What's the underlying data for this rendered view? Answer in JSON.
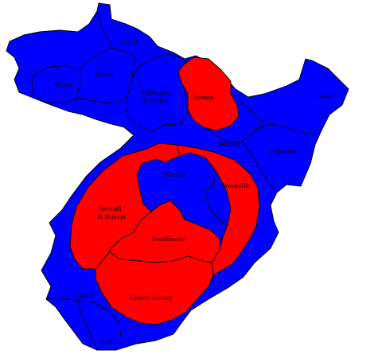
{
  "colors": {
    "conservative": "#0000ff",
    "labour": "#ff0000",
    "border": "#000000",
    "background": "#ffffff"
  },
  "wards": [
    {
      "id": "etwall",
      "party": "conservative",
      "labels": [
        "Etwall"
      ]
    },
    {
      "id": "hatton",
      "party": "conservative",
      "labels": [
        "Hatton"
      ]
    },
    {
      "id": "hilton",
      "party": "conservative",
      "labels": [
        "Hilton"
      ]
    },
    {
      "id": "willington",
      "party": "conservative",
      "labels": [
        "Willington",
        "& Findern"
      ]
    },
    {
      "id": "stenson",
      "party": "labour",
      "labels": [
        "Stenson"
      ]
    },
    {
      "id": "aston",
      "party": "conservative",
      "labels": [
        "Aston"
      ]
    },
    {
      "id": "repton",
      "party": "conservative",
      "labels": [
        "Repton"
      ]
    },
    {
      "id": "melbourne",
      "party": "conservative",
      "labels": [
        "Melbourne"
      ]
    },
    {
      "id": "midway",
      "party": "conservative",
      "labels": [
        "Midway"
      ]
    },
    {
      "id": "woodville",
      "party": "labour",
      "labels": [
        "Woodville"
      ]
    },
    {
      "id": "newhall",
      "party": "labour",
      "labels": [
        "Newhall",
        "& Stanton"
      ]
    },
    {
      "id": "swadlincote",
      "party": "labour",
      "labels": [
        "Swadlincote"
      ]
    },
    {
      "id": "church-gresley",
      "party": "labour",
      "labels": [
        "Church Gresley"
      ]
    },
    {
      "id": "linton",
      "party": "conservative",
      "labels": [
        "Linton"
      ]
    },
    {
      "id": "seales",
      "party": "conservative",
      "labels": [
        "Seales"
      ]
    }
  ]
}
